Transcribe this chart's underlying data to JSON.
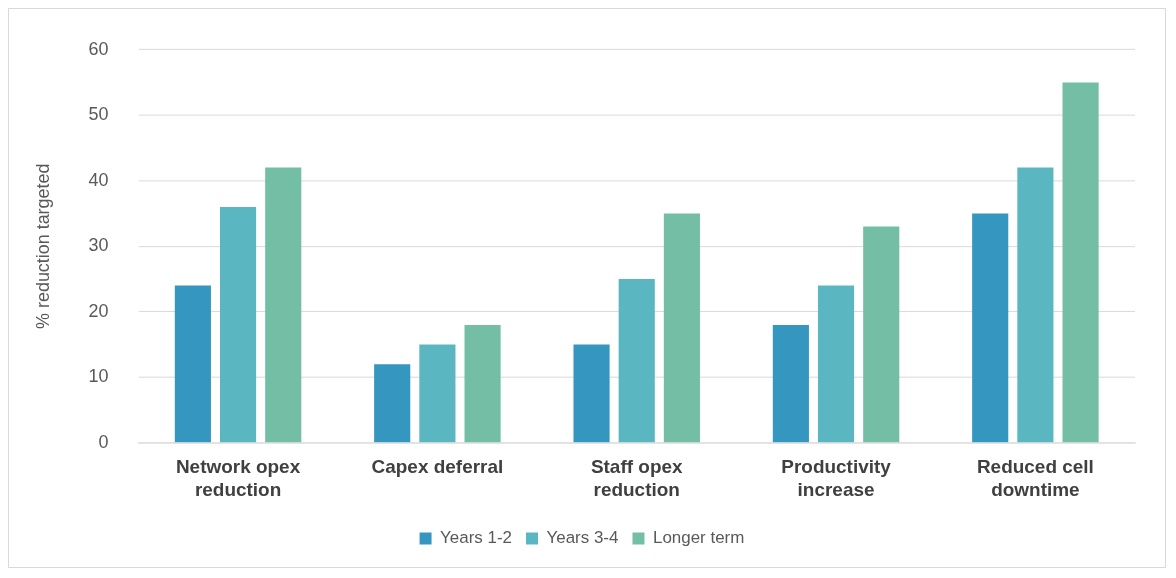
{
  "chart_data": {
    "type": "bar",
    "ylabel": "% reduction targeted",
    "categories": [
      "Network opex reduction",
      "Capex deferral",
      "Staff opex reduction",
      "Productivity increase",
      "Reduced cell downtime"
    ],
    "series": [
      {
        "name": "Years 1-2",
        "color": "#3597bf",
        "values": [
          24,
          12,
          15,
          18,
          35
        ]
      },
      {
        "name": "Years 3-4",
        "color": "#5ab7c2",
        "values": [
          36,
          15,
          25,
          24,
          42
        ]
      },
      {
        "name": "Longer term",
        "color": "#74bea5",
        "values": [
          42,
          18,
          35,
          33,
          55
        ]
      }
    ],
    "ylim": [
      0,
      60
    ],
    "yticks": [
      0,
      10,
      20,
      30,
      40,
      50,
      60
    ],
    "grid": "y",
    "legend": "bottom"
  }
}
